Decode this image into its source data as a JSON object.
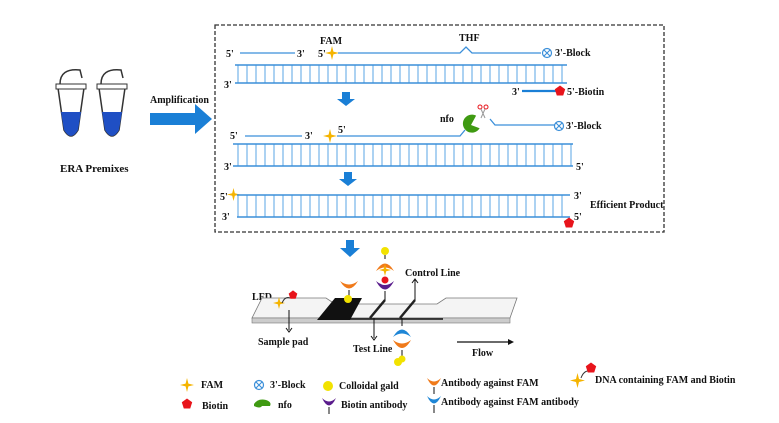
{
  "left": {
    "premix_label": "ERA Premixes",
    "amplification_label": "Amplification"
  },
  "step1": {
    "fam": "FAM",
    "thf": "THF",
    "five_prime": "5'",
    "three_prime": "3'",
    "block": "3'-Block",
    "biotin": "5'-Biotin"
  },
  "step2": {
    "nfo": "nfo",
    "five_prime": "5'",
    "three_prime": "3'",
    "block": "3'-Block"
  },
  "step3": {
    "five_prime": "5'",
    "three_prime": "3'",
    "product": "Efficient Product"
  },
  "lfd": {
    "title": "LFD",
    "sample_pad": "Sample pad",
    "test_line": "Test Line",
    "control_line": "Control Line",
    "flow": "Flow"
  },
  "legend": {
    "fam": "FAM",
    "block": "3'-Block",
    "gold": "Colloidal gald",
    "anti_fam": "Antibody against FAM",
    "dna": "DNA containing FAM and Biotin",
    "biotin": "Biotin",
    "nfo": "nfo",
    "biotin_ab": "Biotin antibody",
    "anti_fam_ab": "Antibody against FAM antibody"
  },
  "colors": {
    "dna": "#3b8fd9",
    "arrow": "#1a7fd6",
    "fam": "#f5b400",
    "biotin": "#e8141b",
    "nfo": "#3f9a12",
    "gold": "#f2e200",
    "anti_fam": "#f07a1a",
    "biotin_ab": "#5a1c8c",
    "anti_fam_ab": "#1e86d6"
  }
}
